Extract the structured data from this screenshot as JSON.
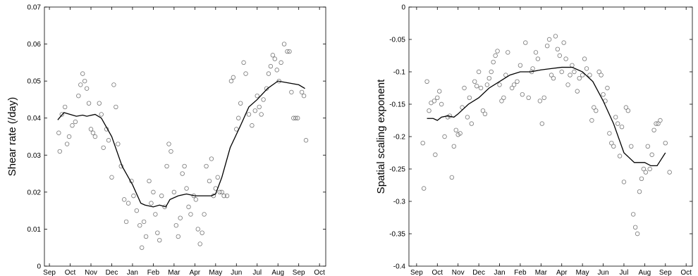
{
  "chart_data": [
    {
      "type": "scatter",
      "ylabel": "Shear rate (/day)",
      "xlim": [
        -0.24,
        13.3
      ],
      "xticks": [
        {
          "value": 0,
          "label": "Sep"
        },
        {
          "value": 1,
          "label": "Oct"
        },
        {
          "value": 2,
          "label": "Nov"
        },
        {
          "value": 3,
          "label": "Dec"
        },
        {
          "value": 4,
          "label": "Jan"
        },
        {
          "value": 5,
          "label": "Feb"
        },
        {
          "value": 6,
          "label": "Mar"
        },
        {
          "value": 7,
          "label": "Apr"
        },
        {
          "value": 8,
          "label": "May"
        },
        {
          "value": 9,
          "label": "Jun"
        },
        {
          "value": 10,
          "label": "Jul"
        },
        {
          "value": 11,
          "label": "Aug"
        },
        {
          "value": 12,
          "label": "Sep"
        },
        {
          "value": 13,
          "label": "Oct"
        }
      ],
      "ylim": [
        0,
        0.07
      ],
      "yticks": [
        0,
        0.01,
        0.02,
        0.03,
        0.04,
        0.05,
        0.06,
        0.07
      ],
      "series": [
        {
          "style": "markers",
          "color": "#777777",
          "x": [
            0.45,
            0.5,
            0.6,
            0.75,
            0.85,
            0.95,
            1.1,
            1.25,
            1.4,
            1.5,
            1.6,
            1.7,
            1.8,
            1.9,
            2.0,
            2.1,
            2.2,
            2.4,
            2.5,
            2.6,
            2.75,
            2.85,
            3.0,
            3.1,
            3.2,
            3.3,
            3.45,
            3.6,
            3.7,
            3.8,
            3.95,
            4.05,
            4.2,
            4.35,
            4.45,
            4.55,
            4.65,
            4.8,
            4.9,
            5.0,
            5.1,
            5.2,
            5.3,
            5.4,
            5.55,
            5.65,
            5.75,
            5.85,
            6.0,
            6.1,
            6.2,
            6.3,
            6.4,
            6.5,
            6.6,
            6.7,
            6.8,
            6.95,
            7.05,
            7.15,
            7.25,
            7.35,
            7.45,
            7.55,
            7.7,
            7.8,
            7.9,
            8.0,
            8.1,
            8.2,
            8.3,
            8.4,
            8.55,
            8.75,
            8.85,
            9.0,
            9.1,
            9.2,
            9.35,
            9.45,
            9.6,
            9.75,
            9.9,
            10.0,
            10.1,
            10.2,
            10.3,
            10.45,
            10.55,
            10.65,
            10.75,
            10.85,
            10.95,
            11.05,
            11.15,
            11.3,
            11.45,
            11.55,
            11.65,
            11.75,
            11.85,
            11.95,
            12.15,
            12.25,
            12.35
          ],
          "values": [
            0.036,
            0.031,
            0.041,
            0.043,
            0.033,
            0.035,
            0.038,
            0.039,
            0.046,
            0.049,
            0.052,
            0.05,
            0.048,
            0.044,
            0.037,
            0.036,
            0.035,
            0.044,
            0.041,
            0.032,
            0.037,
            0.034,
            0.024,
            0.049,
            0.043,
            0.033,
            0.027,
            0.018,
            0.012,
            0.017,
            0.023,
            0.019,
            0.015,
            0.011,
            0.005,
            0.012,
            0.008,
            0.023,
            0.017,
            0.02,
            0.014,
            0.009,
            0.007,
            0.019,
            0.016,
            0.027,
            0.033,
            0.031,
            0.02,
            0.011,
            0.008,
            0.013,
            0.025,
            0.027,
            0.021,
            0.016,
            0.014,
            0.019,
            0.018,
            0.01,
            0.006,
            0.009,
            0.014,
            0.027,
            0.023,
            0.029,
            0.019,
            0.021,
            0.024,
            0.02,
            0.02,
            0.019,
            0.019,
            0.05,
            0.051,
            0.037,
            0.04,
            0.044,
            0.055,
            0.052,
            0.041,
            0.038,
            0.042,
            0.046,
            0.043,
            0.041,
            0.045,
            0.048,
            0.052,
            0.054,
            0.057,
            0.056,
            0.053,
            0.05,
            0.055,
            0.06,
            0.058,
            0.058,
            0.047,
            0.04,
            0.04,
            0.04,
            0.047,
            0.046,
            0.034
          ]
        },
        {
          "style": "line",
          "color": "#000000",
          "x": [
            0.4,
            0.7,
            1.0,
            1.3,
            1.6,
            1.8,
            2.2,
            2.5,
            3.0,
            3.5,
            4.0,
            4.4,
            4.6,
            5.0,
            5.3,
            5.6,
            5.8,
            6.2,
            6.6,
            7.0,
            7.4,
            7.8,
            8.0,
            8.3,
            8.7,
            9.2,
            9.6,
            10.0,
            10.5,
            11.0,
            11.5,
            12.0,
            12.3
          ],
          "values": [
            0.0395,
            0.0415,
            0.041,
            0.0405,
            0.0408,
            0.0405,
            0.041,
            0.04,
            0.035,
            0.027,
            0.022,
            0.017,
            0.0165,
            0.016,
            0.0165,
            0.016,
            0.018,
            0.019,
            0.0195,
            0.019,
            0.019,
            0.019,
            0.0195,
            0.024,
            0.032,
            0.038,
            0.043,
            0.045,
            0.048,
            0.05,
            0.0495,
            0.049,
            0.048
          ]
        }
      ]
    },
    {
      "type": "scatter",
      "ylabel": "Spatial scaling exponent",
      "xlim": [
        -0.37,
        13.3
      ],
      "xticks": [
        {
          "value": 0,
          "label": "Sep"
        },
        {
          "value": 1,
          "label": "Oct"
        },
        {
          "value": 2,
          "label": "Nov"
        },
        {
          "value": 3,
          "label": "Dec"
        },
        {
          "value": 4,
          "label": "Jan"
        },
        {
          "value": 5,
          "label": "Feb"
        },
        {
          "value": 6,
          "label": "Mar"
        },
        {
          "value": 7,
          "label": "Apr"
        },
        {
          "value": 8,
          "label": "May"
        },
        {
          "value": 9,
          "label": "Jun"
        },
        {
          "value": 10,
          "label": "Jul"
        },
        {
          "value": 11,
          "label": "Aug"
        },
        {
          "value": 12,
          "label": "Sep"
        },
        {
          "value": 13,
          "label": "Oct"
        }
      ],
      "ylim": [
        -0.4,
        0
      ],
      "yticks": [
        0,
        -0.05,
        -0.1,
        -0.15,
        -0.2,
        -0.25,
        -0.3,
        -0.35,
        -0.4
      ],
      "series": [
        {
          "style": "markers",
          "color": "#777777",
          "x": [
            0.3,
            0.35,
            0.5,
            0.6,
            0.7,
            0.85,
            0.9,
            1.0,
            1.1,
            1.2,
            1.35,
            1.5,
            1.6,
            1.7,
            1.8,
            1.9,
            2.0,
            2.1,
            2.2,
            2.3,
            2.45,
            2.55,
            2.65,
            2.8,
            2.9,
            3.0,
            3.1,
            3.2,
            3.3,
            3.4,
            3.5,
            3.6,
            3.7,
            3.8,
            3.9,
            4.0,
            4.1,
            4.2,
            4.3,
            4.4,
            4.6,
            4.7,
            4.85,
            5.0,
            5.1,
            5.25,
            5.4,
            5.55,
            5.6,
            5.75,
            5.85,
            5.95,
            6.05,
            6.15,
            6.3,
            6.4,
            6.5,
            6.6,
            6.7,
            6.8,
            6.9,
            7.0,
            7.1,
            7.2,
            7.3,
            7.4,
            7.5,
            7.6,
            7.75,
            7.85,
            8.0,
            8.1,
            8.2,
            8.35,
            8.45,
            8.55,
            8.65,
            8.8,
            8.9,
            9.0,
            9.1,
            9.2,
            9.3,
            9.4,
            9.5,
            9.6,
            9.7,
            9.8,
            9.9,
            10.0,
            10.1,
            10.2,
            10.35,
            10.45,
            10.55,
            10.65,
            10.75,
            10.85,
            10.95,
            11.05,
            11.15,
            11.25,
            11.35,
            11.45,
            11.55,
            11.65,
            11.75,
            12.0,
            12.2
          ],
          "values": [
            -0.21,
            -0.28,
            -0.115,
            -0.16,
            -0.148,
            -0.145,
            -0.228,
            -0.14,
            -0.13,
            -0.15,
            -0.2,
            -0.17,
            -0.168,
            -0.263,
            -0.215,
            -0.19,
            -0.197,
            -0.195,
            -0.155,
            -0.125,
            -0.17,
            -0.14,
            -0.18,
            -0.115,
            -0.122,
            -0.1,
            -0.125,
            -0.16,
            -0.165,
            -0.12,
            -0.11,
            -0.1,
            -0.085,
            -0.075,
            -0.068,
            -0.12,
            -0.145,
            -0.14,
            -0.105,
            -0.07,
            -0.125,
            -0.12,
            -0.115,
            -0.09,
            -0.135,
            -0.055,
            -0.14,
            -0.1,
            -0.095,
            -0.07,
            -0.08,
            -0.145,
            -0.18,
            -0.14,
            -0.06,
            -0.05,
            -0.105,
            -0.11,
            -0.045,
            -0.065,
            -0.075,
            -0.1,
            -0.055,
            -0.08,
            -0.12,
            -0.105,
            -0.09,
            -0.1,
            -0.13,
            -0.11,
            -0.105,
            -0.08,
            -0.095,
            -0.105,
            -0.175,
            -0.155,
            -0.16,
            -0.1,
            -0.105,
            -0.135,
            -0.145,
            -0.125,
            -0.195,
            -0.21,
            -0.215,
            -0.17,
            -0.18,
            -0.23,
            -0.185,
            -0.27,
            -0.155,
            -0.16,
            -0.215,
            -0.32,
            -0.34,
            -0.35,
            -0.285,
            -0.265,
            -0.25,
            -0.255,
            -0.215,
            -0.25,
            -0.228,
            -0.19,
            -0.18,
            -0.18,
            -0.175,
            -0.21,
            -0.255
          ]
        },
        {
          "style": "line",
          "color": "#000000",
          "x": [
            0.5,
            0.8,
            1.0,
            1.2,
            1.5,
            1.8,
            2.0,
            2.5,
            3.0,
            3.5,
            4.0,
            4.5,
            5.0,
            5.5,
            6.0,
            6.5,
            7.0,
            7.5,
            8.0,
            8.5,
            9.0,
            9.5,
            10.0,
            10.5,
            11.0,
            11.3,
            11.6,
            11.8,
            12.0
          ],
          "values": [
            -0.172,
            -0.172,
            -0.175,
            -0.17,
            -0.168,
            -0.17,
            -0.165,
            -0.15,
            -0.14,
            -0.125,
            -0.115,
            -0.105,
            -0.1,
            -0.1,
            -0.097,
            -0.095,
            -0.093,
            -0.093,
            -0.1,
            -0.115,
            -0.145,
            -0.18,
            -0.225,
            -0.24,
            -0.24,
            -0.245,
            -0.245,
            -0.235,
            -0.225
          ]
        }
      ]
    }
  ]
}
